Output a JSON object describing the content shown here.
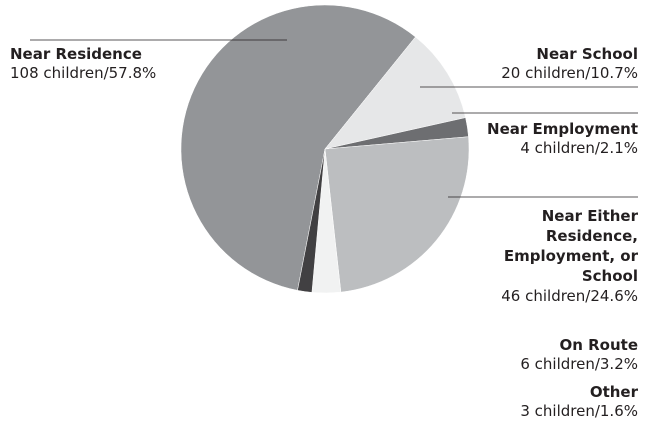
{
  "chart_data": {
    "type": "pie",
    "title": "",
    "slices": [
      {
        "label": "Near Residence",
        "children": 108,
        "percent": 57.8,
        "value_text": "108 children/57.8%",
        "color": "#939598"
      },
      {
        "label": "Near School",
        "children": 20,
        "percent": 10.7,
        "value_text": "20 children/10.7%",
        "color": "#e6e7e8"
      },
      {
        "label": "Near Employment",
        "children": 4,
        "percent": 2.1,
        "value_text": "4 children/2.1%",
        "color": "#6d6e71"
      },
      {
        "label": "Near Either Residence, Employment, or School",
        "children": 46,
        "percent": 24.6,
        "value_text": "46 children/24.6%",
        "color": "#bcbec0"
      },
      {
        "label": "On Route",
        "children": 6,
        "percent": 3.2,
        "value_text": "6 children/3.2%",
        "color": "#f1f2f2"
      },
      {
        "label": "Other",
        "children": 3,
        "percent": 1.6,
        "value_text": "3 children/1.6%",
        "color": "#414042"
      }
    ]
  }
}
